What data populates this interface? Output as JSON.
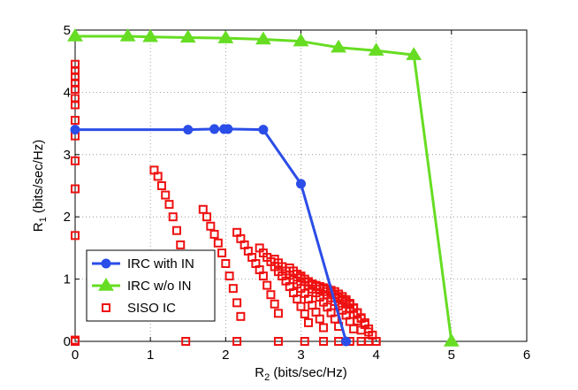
{
  "chart_data": {
    "type": "line",
    "xlabel": {
      "main": "R",
      "sub": "2",
      "rest": " (bits/sec/Hz)"
    },
    "ylabel": {
      "main": "R",
      "sub": "1",
      "rest": " (bits/sec/Hz)"
    },
    "xlim": [
      0,
      6
    ],
    "ylim": [
      0,
      5
    ],
    "xticks": [
      "0",
      "1",
      "2",
      "3",
      "4",
      "5",
      "6"
    ],
    "yticks": [
      "0",
      "1",
      "2",
      "3",
      "4",
      "5"
    ],
    "grid": true,
    "legend_position": "lower-left",
    "series": [
      {
        "name": "IRC with IN",
        "color": "#2b4de8",
        "marker": "circle",
        "style": "line",
        "x": [
          0,
          1.5,
          1.85,
          1.98,
          2.03,
          2.5,
          3.0,
          3.6
        ],
        "y": [
          3.4,
          3.4,
          3.41,
          3.41,
          3.41,
          3.4,
          2.53,
          0.0
        ]
      },
      {
        "name": "IRC w/o IN",
        "color": "#66dd22",
        "marker": "triangle",
        "style": "line",
        "x": [
          0,
          0.7,
          1.0,
          1.5,
          2.0,
          2.5,
          3.0,
          3.5,
          4.0,
          4.5,
          5.0
        ],
        "y": [
          4.9,
          4.9,
          4.89,
          4.88,
          4.87,
          4.85,
          4.82,
          4.72,
          4.67,
          4.6,
          0.0
        ]
      },
      {
        "name": "SISO IC",
        "color": "#ee1111",
        "marker": "square",
        "style": "markers",
        "x": [
          0,
          0,
          0,
          0,
          0,
          0,
          0,
          0,
          0,
          0,
          0,
          0,
          0,
          0,
          1.05,
          1.1,
          1.15,
          1.2,
          1.25,
          1.3,
          1.35,
          1.4,
          1.45,
          1.5,
          1.7,
          1.75,
          1.8,
          1.85,
          1.9,
          1.95,
          2.0,
          2.05,
          2.1,
          2.15,
          2.2,
          2.15,
          2.2,
          2.25,
          2.3,
          2.35,
          2.4,
          2.45,
          2.5,
          2.55,
          2.6,
          2.65,
          2.7,
          2.45,
          2.5,
          2.55,
          2.6,
          2.65,
          2.7,
          2.75,
          2.8,
          2.85,
          2.9,
          2.95,
          3.0,
          3.05,
          3.1,
          2.65,
          2.7,
          2.75,
          2.8,
          2.85,
          2.9,
          2.95,
          3.0,
          3.05,
          3.1,
          3.15,
          3.2,
          3.25,
          3.3,
          2.85,
          2.9,
          2.95,
          3.0,
          3.05,
          3.1,
          3.15,
          3.2,
          3.25,
          3.3,
          3.35,
          3.4,
          3.45,
          3.5,
          3.0,
          3.05,
          3.1,
          3.15,
          3.2,
          3.25,
          3.3,
          3.35,
          3.4,
          3.45,
          3.5,
          3.55,
          3.6,
          3.65,
          3.7,
          3.1,
          3.15,
          3.2,
          3.25,
          3.3,
          3.35,
          3.4,
          3.45,
          3.5,
          3.55,
          3.6,
          3.65,
          3.7,
          3.75,
          3.8,
          3.25,
          3.3,
          3.35,
          3.4,
          3.45,
          3.5,
          3.55,
          3.6,
          3.65,
          3.7,
          3.75,
          3.8,
          3.85,
          3.9,
          3.4,
          3.45,
          3.5,
          3.55,
          3.6,
          3.65,
          3.7,
          3.75,
          3.8,
          3.85,
          3.9,
          3.95,
          4.0,
          1.47,
          2.15,
          2.7,
          3.05,
          3.3,
          3.5,
          3.65,
          3.8,
          3.9,
          4.0
        ],
        "y": [
          0,
          1.7,
          2.45,
          2.9,
          3.3,
          3.55,
          3.8,
          3.9,
          4.05,
          4.15,
          4.25,
          4.35,
          4.45,
          0.02,
          2.75,
          2.65,
          2.5,
          2.35,
          2.2,
          2.0,
          1.78,
          1.55,
          1.25,
          1.0,
          2.12,
          2.0,
          1.85,
          1.72,
          1.58,
          1.42,
          1.25,
          1.05,
          0.85,
          0.62,
          0.4,
          1.75,
          1.65,
          1.55,
          1.45,
          1.35,
          1.25,
          1.15,
          1.05,
          0.9,
          0.75,
          0.6,
          0.45,
          1.5,
          1.42,
          1.35,
          1.28,
          1.2,
          1.12,
          1.05,
          0.97,
          0.88,
          0.78,
          0.68,
          0.56,
          0.44,
          0.3,
          1.32,
          1.26,
          1.2,
          1.13,
          1.06,
          0.99,
          0.92,
          0.85,
          0.77,
          0.68,
          0.58,
          0.47,
          0.36,
          0.22,
          1.18,
          1.13,
          1.08,
          1.02,
          0.96,
          0.9,
          0.84,
          0.78,
          0.71,
          0.63,
          0.55,
          0.46,
          0.36,
          0.24,
          1.05,
          1.0,
          0.96,
          0.92,
          0.88,
          0.84,
          0.8,
          0.75,
          0.7,
          0.64,
          0.57,
          0.5,
          0.42,
          0.32,
          0.2,
          0.95,
          0.92,
          0.9,
          0.88,
          0.86,
          0.84,
          0.8,
          0.76,
          0.71,
          0.66,
          0.6,
          0.52,
          0.43,
          0.33,
          0.18,
          0.88,
          0.86,
          0.84,
          0.82,
          0.8,
          0.76,
          0.72,
          0.67,
          0.61,
          0.54,
          0.46,
          0.37,
          0.27,
          0.15,
          0.78,
          0.75,
          0.72,
          0.68,
          0.64,
          0.59,
          0.53,
          0.46,
          0.38,
          0.3,
          0.2,
          0.1,
          0.0,
          0,
          0,
          0,
          0,
          0,
          0,
          0,
          0,
          0,
          0
        ]
      }
    ]
  }
}
